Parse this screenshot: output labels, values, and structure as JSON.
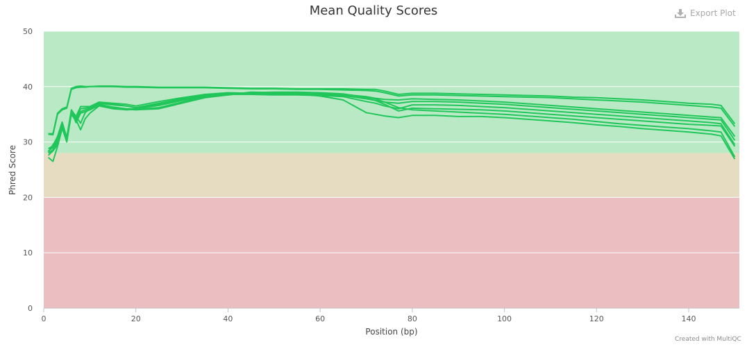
{
  "export_label": "Export Plot",
  "credit": "Created with MultiQC",
  "colors": {
    "line": "#20c65a",
    "band_good": "#b9eac5",
    "band_warn": "#e6dcc1",
    "band_fail": "#ebbfc2",
    "icon": "#a8a8a8"
  },
  "chart_data": {
    "type": "line",
    "title": "Mean Quality Scores",
    "xlabel": "Position (bp)",
    "ylabel": "Phred Score",
    "xlim": [
      0,
      151
    ],
    "ylim": [
      0,
      50
    ],
    "xticks": [
      0,
      20,
      40,
      60,
      80,
      100,
      120,
      140
    ],
    "yticks": [
      0,
      10,
      20,
      30,
      40,
      50
    ],
    "bands": [
      {
        "from": 28,
        "to": 50,
        "zone": "good"
      },
      {
        "from": 20,
        "to": 28,
        "zone": "warn"
      },
      {
        "from": 0,
        "to": 20,
        "zone": "fail"
      }
    ],
    "grid": true,
    "legend": "none",
    "series": [
      {
        "x": [
          1,
          2,
          3,
          4,
          5,
          6,
          7,
          8,
          9,
          10,
          12,
          15,
          18,
          20,
          25,
          30,
          35,
          40,
          45,
          50,
          55,
          60,
          65,
          70,
          72,
          74,
          77,
          80,
          85,
          90,
          95,
          100,
          105,
          110,
          115,
          120,
          125,
          130,
          135,
          140,
          145,
          147,
          150
        ],
        "y": [
          31.5,
          31.5,
          35.2,
          36,
          36.3,
          39.7,
          40,
          40.1,
          40,
          40,
          40.1,
          40.1,
          40,
          40,
          39.9,
          39.9,
          39.9,
          39.8,
          39.7,
          39.7,
          39.6,
          39.6,
          39.6,
          39.5,
          39.5,
          39.2,
          38.6,
          38.8,
          38.8,
          38.7,
          38.6,
          38.5,
          38.4,
          38.3,
          38.1,
          38,
          37.8,
          37.6,
          37.3,
          37,
          36.8,
          36.6,
          33.3
        ]
      },
      {
        "x": [
          1,
          2,
          3,
          4,
          5,
          6,
          7,
          8,
          9,
          10,
          12,
          15,
          18,
          20,
          25,
          30,
          35,
          40,
          45,
          50,
          55,
          60,
          65,
          70,
          72,
          74,
          77,
          80,
          85,
          90,
          95,
          100,
          105,
          110,
          115,
          120,
          125,
          130,
          135,
          140,
          145,
          147,
          150
        ],
        "y": [
          31.4,
          31.3,
          35,
          35.8,
          36.1,
          39.5,
          39.8,
          39.9,
          39.9,
          40,
          40,
          40,
          39.9,
          39.9,
          39.8,
          39.8,
          39.8,
          39.7,
          39.6,
          39.6,
          39.5,
          39.5,
          39.4,
          39.3,
          39.2,
          38.9,
          38.3,
          38.5,
          38.5,
          38.4,
          38.3,
          38.2,
          38.1,
          38,
          37.8,
          37.6,
          37.4,
          37.2,
          36.9,
          36.6,
          36.3,
          36.1,
          32.8
        ]
      },
      {
        "x": [
          1,
          2,
          3,
          4,
          5,
          6,
          7,
          8,
          9,
          10,
          12,
          15,
          18,
          20,
          25,
          30,
          35,
          40,
          45,
          50,
          55,
          60,
          65,
          70,
          72,
          74,
          77,
          80,
          85,
          90,
          95,
          100,
          105,
          110,
          115,
          120,
          125,
          130,
          135,
          140,
          145,
          147,
          150
        ],
        "y": [
          28.8,
          29.3,
          31,
          33.6,
          30.8,
          35.8,
          34.6,
          36.4,
          36.4,
          36.4,
          37.2,
          37,
          36.8,
          36.5,
          37.3,
          38,
          38.6,
          38.9,
          38.8,
          38.7,
          38.7,
          38.7,
          38.6,
          38.2,
          37.9,
          37.7,
          37.6,
          37.8,
          37.7,
          37.6,
          37.4,
          37.2,
          36.9,
          36.6,
          36.3,
          36,
          35.7,
          35.4,
          35.1,
          34.8,
          34.5,
          34.4,
          31
        ]
      },
      {
        "x": [
          1,
          2,
          3,
          4,
          5,
          6,
          7,
          8,
          9,
          10,
          12,
          15,
          18,
          20,
          25,
          30,
          35,
          40,
          45,
          50,
          55,
          60,
          65,
          70,
          72,
          74,
          77,
          80,
          85,
          90,
          95,
          100,
          105,
          110,
          115,
          120,
          125,
          130,
          135,
          140,
          145,
          147,
          150
        ],
        "y": [
          28.4,
          29,
          30.5,
          33.2,
          30.5,
          35.4,
          34.2,
          36,
          36.1,
          36.2,
          37,
          36.7,
          36.5,
          36.2,
          37,
          37.8,
          38.4,
          38.7,
          38.7,
          38.6,
          38.6,
          38.5,
          38.4,
          37.8,
          37.5,
          37.2,
          37,
          37.3,
          37.3,
          37.2,
          37,
          36.8,
          36.5,
          36.2,
          35.9,
          35.6,
          35.3,
          35,
          34.7,
          34.4,
          34.1,
          34,
          30.3
        ]
      },
      {
        "x": [
          1,
          2,
          3,
          4,
          5,
          6,
          7,
          8,
          9,
          10,
          12,
          15,
          18,
          20,
          25,
          30,
          35,
          40,
          45,
          50,
          55,
          60,
          65,
          70,
          72,
          74,
          77,
          80,
          85,
          90,
          95,
          100,
          105,
          110,
          115,
          120,
          125,
          130,
          135,
          140,
          145,
          147,
          150
        ],
        "y": [
          28,
          28.6,
          30,
          32.8,
          30.2,
          35,
          33.8,
          35.5,
          35.8,
          36,
          36.8,
          36.3,
          36,
          36,
          36.6,
          37.5,
          38.2,
          38.6,
          38.6,
          38.5,
          38.5,
          38.4,
          38.2,
          37.3,
          37,
          36.5,
          36,
          36.7,
          36.7,
          36.6,
          36.4,
          36.2,
          35.9,
          35.6,
          35.3,
          35,
          34.7,
          34.4,
          34.1,
          33.8,
          33.5,
          33.3,
          29.5
        ]
      },
      {
        "x": [
          1,
          2,
          3,
          4,
          5,
          6,
          7,
          8,
          9,
          10,
          12,
          15,
          18,
          20,
          25,
          30,
          35,
          40,
          45,
          50,
          55,
          60,
          65,
          70,
          72,
          74,
          77,
          80,
          85,
          90,
          95,
          100,
          105,
          110,
          115,
          120,
          125,
          130,
          135,
          140,
          145,
          147,
          150
        ],
        "y": [
          28.2,
          29.5,
          30.8,
          33.4,
          30.8,
          35.6,
          33.5,
          35.2,
          35.5,
          35.8,
          36.6,
          36.1,
          35.9,
          35.8,
          36,
          37,
          38,
          38.5,
          38.9,
          39,
          39,
          38.9,
          38.7,
          38,
          37.5,
          36.8,
          35.6,
          36.1,
          36,
          35.9,
          35.8,
          35.6,
          35.3,
          35,
          34.7,
          34.4,
          34.1,
          33.8,
          33.5,
          33.2,
          33,
          32.9,
          29.2
        ]
      },
      {
        "x": [
          1,
          2,
          3,
          4,
          5,
          6,
          7,
          8,
          9,
          10,
          12,
          15,
          18,
          20,
          25,
          30,
          35,
          40,
          45,
          50,
          55,
          60,
          65,
          70,
          72,
          74,
          77,
          80,
          85,
          90,
          95,
          100,
          105,
          110,
          115,
          120,
          125,
          130,
          135,
          140,
          145,
          147,
          150
        ],
        "y": [
          27.6,
          28.4,
          29.5,
          32.6,
          30,
          35.2,
          34,
          32.2,
          34.2,
          35.2,
          36.5,
          36,
          35.8,
          35.9,
          36.2,
          37.2,
          38.1,
          38.5,
          39,
          38.9,
          38.8,
          38.6,
          38.5,
          38.2,
          37.8,
          37.2,
          36.2,
          35.8,
          35.6,
          35.4,
          35.2,
          35,
          34.7,
          34.4,
          34.1,
          33.7,
          33.3,
          33,
          32.7,
          32.4,
          32,
          31.8,
          27.3
        ]
      },
      {
        "x": [
          1,
          2,
          3,
          4,
          5,
          6,
          7,
          8,
          9,
          10,
          12,
          15,
          18,
          20,
          25,
          30,
          35,
          40,
          45,
          50,
          55,
          60,
          65,
          70,
          72,
          74,
          77,
          80,
          85,
          90,
          95,
          100,
          105,
          110,
          115,
          120,
          125,
          130,
          135,
          140,
          145,
          147,
          150
        ],
        "y": [
          27.2,
          26.5,
          29.2,
          32.4,
          30.3,
          35.5,
          34.6,
          33.4,
          35.3,
          36,
          37,
          36.8,
          36.5,
          36.2,
          36.8,
          37.6,
          38.3,
          38.6,
          38.8,
          38.8,
          38.7,
          38.3,
          37.6,
          35.3,
          35,
          34.7,
          34.4,
          34.8,
          34.8,
          34.6,
          34.6,
          34.4,
          34.1,
          33.8,
          33.5,
          33.1,
          32.8,
          32.4,
          32.1,
          31.8,
          31.4,
          31.1,
          26.9
        ]
      }
    ]
  }
}
